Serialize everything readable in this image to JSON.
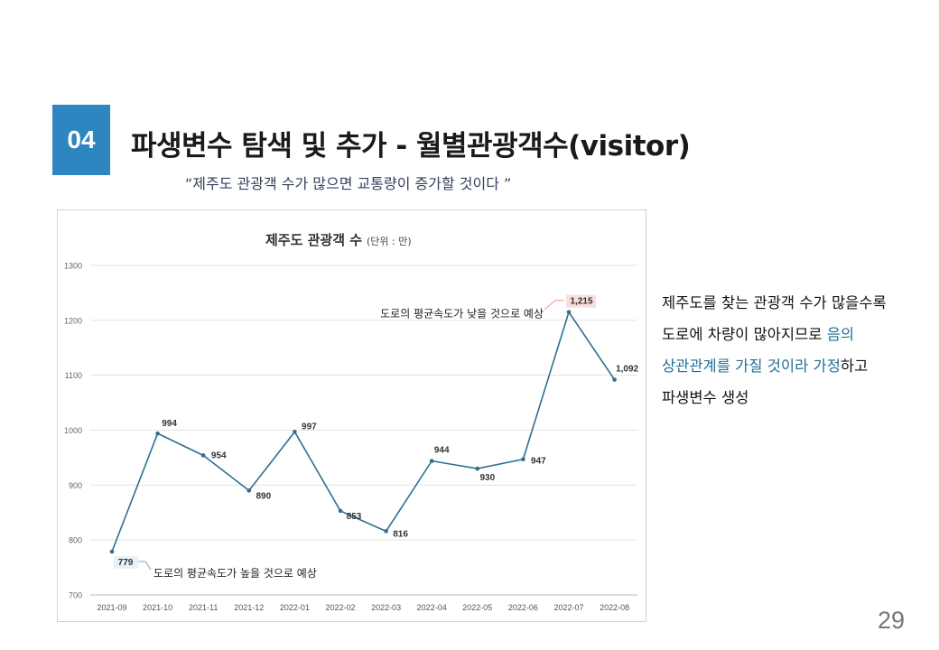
{
  "slide": {
    "number_badge": "04",
    "title": "파생변수 탐색 및 추가 - 월별관광객수(visitor)",
    "subtitle": "“제주도 관광객 수가 많으면 교통량이 증가할 것이다 ”",
    "description": {
      "line1": "제주도를 찾는 관광객 수가 많을수록",
      "line2_a": "도로에 차량이 많아지므로 ",
      "line2_b": "음의",
      "line3_a": "상관관계를 가질 것이라 가정",
      "line3_b": "하고",
      "line4": "파생변수 생성"
    },
    "page_number": "29",
    "accent_color": "#2e86c1",
    "highlight_color": "#1f6f95"
  },
  "chart_data": {
    "type": "line",
    "title": "제주도 관광객 수",
    "title_unit": "(단위 : 만)",
    "categories": [
      "2021-09",
      "2021-10",
      "2021-11",
      "2021-12",
      "2022-01",
      "2022-02",
      "2022-03",
      "2022-04",
      "2022-05",
      "2022-06",
      "2022-07",
      "2022-08"
    ],
    "values": [
      779,
      994,
      954,
      890,
      997,
      853,
      816,
      944,
      930,
      947,
      1215,
      1092
    ],
    "data_labels": [
      "779",
      "994",
      "954",
      "890",
      "997",
      "853",
      "816",
      "944",
      "930",
      "947",
      "1,215",
      "1,092"
    ],
    "ylim": [
      700,
      1300
    ],
    "yticks": [
      700,
      800,
      900,
      1000,
      1100,
      1200,
      1300
    ],
    "grid": true,
    "line_color": "#2f6f8f",
    "annotations": [
      {
        "text": "도로의 평균속도가 낮을 것으로 예상",
        "target_index": 10
      },
      {
        "text": "도로의 평균속도가 높을 것으로 예상",
        "target_index": 0
      }
    ]
  }
}
